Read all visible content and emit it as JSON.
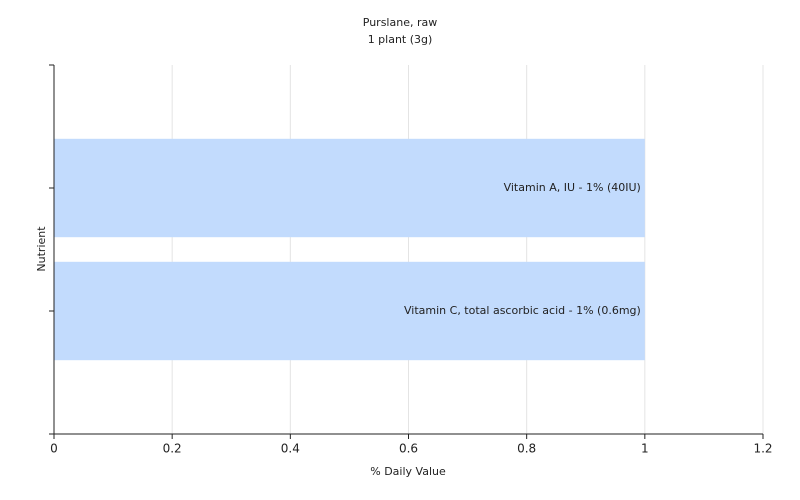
{
  "chart_data": {
    "type": "bar",
    "orientation": "horizontal",
    "title": "Purslane, raw",
    "subtitle": "1 plant (3g)",
    "x_label": "% Daily Value",
    "y_label": "Nutrient",
    "categories": [
      "Vitamin A, IU - 1% (40IU)",
      "Vitamin C, total ascorbic acid - 1% (0.6mg)"
    ],
    "values": [
      1,
      1
    ],
    "color": "#c2dbfd",
    "xlim": [
      0,
      1.2
    ],
    "xticks": [
      0,
      0.2,
      0.4,
      0.6,
      0.8,
      1,
      1.2
    ],
    "grid": true
  }
}
